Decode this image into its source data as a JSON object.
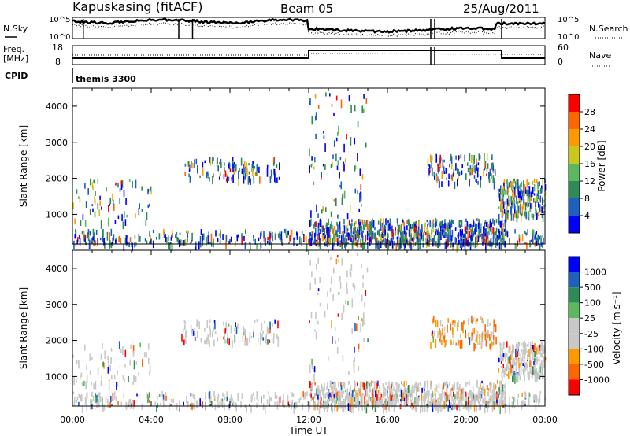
{
  "header": {
    "station": "Kapuskasing (fitACF)",
    "beam": "Beam 05",
    "date": "25/Aug/2011"
  },
  "panels": {
    "noise": {
      "left_label": "N.Sky",
      "right_label": "N.Search",
      "left_ticks": [
        "10^5",
        "10^0"
      ],
      "right_ticks": [
        "10^5",
        "10^0"
      ]
    },
    "freq": {
      "left_label_1": "Freq.",
      "left_label_2": "[MHz]",
      "right_label": "Nave",
      "left_ticks": [
        "18",
        "8"
      ],
      "right_ticks": [
        "60",
        "0"
      ]
    },
    "cpid": {
      "label": "CPID",
      "value": "themis 3300"
    }
  },
  "colors": {
    "power": [
      "#0000ff",
      "#1f5fbf",
      "#2e8b57",
      "#5cb85c",
      "#c8c81e",
      "#ff9900",
      "#ff6600",
      "#ff0000"
    ],
    "velocity": [
      "#ff0000",
      "#ff6600",
      "#ff9900",
      "#c8c8c8",
      "#c8c8c8",
      "#5cb85c",
      "#2e8b57",
      "#1f5fbf",
      "#0000ff"
    ]
  },
  "chart_data": [
    {
      "type": "heatmap",
      "title": "",
      "ylabel": "Slant Range [km]",
      "xlabel": "",
      "ylim": [
        180,
        4500
      ],
      "xlim": [
        "00:00",
        "24:00"
      ],
      "yticks": [
        "1000",
        "2000",
        "3000",
        "4000"
      ],
      "colorbar": {
        "label": "Power [dB]",
        "ticks": [
          "4",
          "8",
          "12",
          "16",
          "20",
          "24",
          "28"
        ],
        "range": [
          0,
          30
        ]
      }
    },
    {
      "type": "heatmap",
      "title": "",
      "ylabel": "Slant Range [km]",
      "xlabel": "Time UT",
      "ylim": [
        180,
        4500
      ],
      "xlim": [
        "00:00",
        "24:00"
      ],
      "yticks": [
        "1000",
        "2000",
        "3000",
        "4000"
      ],
      "xticks": [
        "00:00",
        "04:00",
        "08:00",
        "12:00",
        "16:00",
        "20:00",
        "00:00"
      ],
      "colorbar": {
        "label": "Velocity [m s⁻¹]",
        "ticks": [
          "-1000",
          "-500",
          "-100",
          "-25",
          "25",
          "100",
          "500",
          "1000"
        ],
        "range": [
          -1000,
          1000
        ]
      }
    }
  ]
}
